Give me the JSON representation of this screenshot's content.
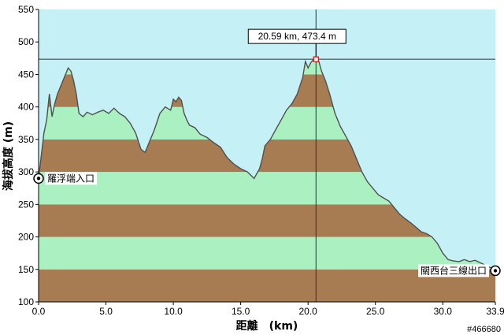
{
  "chart_data": {
    "type": "area",
    "xlabel": "距離　(km)",
    "ylabel": "海拔高度 (m)",
    "xlim": [
      0,
      33.9
    ],
    "ylim": [
      100,
      550
    ],
    "x_ticks": [
      "0.0",
      "5.0",
      "10.0",
      "15.0",
      "20.0",
      "25.0",
      "30.0",
      "33.9"
    ],
    "y_ticks": [
      "100",
      "150",
      "200",
      "250",
      "300",
      "350",
      "400",
      "450",
      "500",
      "550"
    ],
    "grid": false,
    "band_colors": [
      "#a87c52",
      "#aaf0c0"
    ],
    "plot_background": "#c5f0f5",
    "line_color": "#505050",
    "series": [
      {
        "x": [
          0.0,
          0.2,
          0.4,
          0.6,
          0.8,
          1.0,
          1.2,
          1.4,
          1.6,
          1.8,
          2.0,
          2.2,
          2.4,
          2.6,
          2.8,
          3.0,
          3.3,
          3.6,
          4.0,
          4.4,
          4.8,
          5.2,
          5.6,
          6.0,
          6.4,
          6.8,
          7.2,
          7.6,
          7.9,
          8.2,
          8.6,
          9.0,
          9.4,
          9.8,
          10.0,
          10.2,
          10.4,
          10.6,
          10.8,
          11.0,
          11.2,
          11.6,
          12.0,
          12.5,
          13.0,
          13.5,
          14.0,
          14.5,
          15.0,
          15.5,
          16.0,
          16.4,
          16.6,
          16.8,
          17.2,
          17.6,
          18.0,
          18.4,
          18.8,
          19.2,
          19.6,
          19.8,
          20.0,
          20.2,
          20.4,
          20.59,
          20.8,
          21.0,
          21.3,
          21.6,
          22.0,
          22.4,
          22.8,
          23.2,
          23.6,
          24.0,
          24.4,
          24.8,
          25.2,
          25.6,
          26.0,
          26.4,
          26.8,
          27.2,
          27.6,
          28.0,
          28.4,
          28.8,
          29.2,
          29.6,
          30.0,
          30.4,
          30.8,
          31.2,
          31.6,
          32.0,
          32.4,
          32.8,
          33.2,
          33.6,
          33.9
        ],
        "y": [
          290,
          325,
          360,
          380,
          420,
          385,
          405,
          420,
          430,
          440,
          450,
          460,
          455,
          440,
          420,
          390,
          385,
          392,
          388,
          392,
          395,
          390,
          398,
          390,
          385,
          375,
          360,
          335,
          330,
          345,
          365,
          390,
          400,
          395,
          412,
          408,
          415,
          410,
          390,
          380,
          372,
          368,
          358,
          353,
          345,
          338,
          322,
          312,
          305,
          300,
          290,
          305,
          320,
          340,
          350,
          365,
          380,
          395,
          405,
          420,
          445,
          470,
          460,
          468,
          473,
          473.4,
          470,
          455,
          440,
          420,
          390,
          370,
          355,
          340,
          320,
          300,
          285,
          275,
          265,
          260,
          255,
          245,
          235,
          228,
          222,
          215,
          208,
          205,
          200,
          190,
          175,
          165,
          163,
          162,
          165,
          162,
          164,
          160,
          156,
          152,
          148
        ]
      }
    ],
    "annotations": [
      {
        "label": "20.59 km, 473.4 m",
        "x": 20.59,
        "y": 473.4
      }
    ],
    "markers": [
      {
        "label": "羅浮端入口",
        "x": 0.0,
        "y": 290
      },
      {
        "label": "關西台三線出口",
        "x": 33.9,
        "y": 148
      }
    ]
  },
  "watermark": "#466680"
}
